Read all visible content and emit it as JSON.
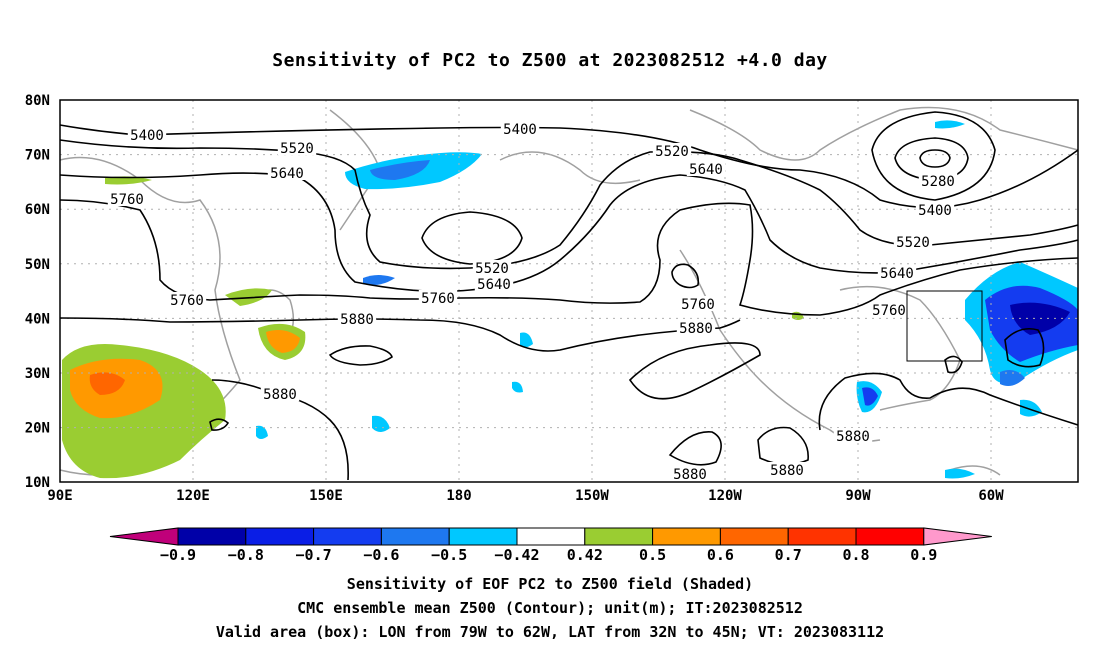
{
  "title": "Sensitivity of PC2 to Z500 at 2023082512 +4.0 day",
  "map": {
    "lat_labels": [
      "80N",
      "70N",
      "60N",
      "50N",
      "40N",
      "30N",
      "20N",
      "10N"
    ],
    "lon_labels": [
      "90E",
      "120E",
      "150E",
      "180",
      "150W",
      "120W",
      "90W",
      "60W"
    ],
    "valid_box": {
      "lon_from": "79W",
      "lon_to": "62W",
      "lat_from": "32N",
      "lat_to": "45N"
    }
  },
  "contours": [
    {
      "value": "5400",
      "label": "5400"
    },
    {
      "value": "5280",
      "label": "5280"
    },
    {
      "value": "5520",
      "label": "5520"
    },
    {
      "value": "5640",
      "label": "5640"
    },
    {
      "value": "5760",
      "label": "5760"
    },
    {
      "value": "5880",
      "label": "5880"
    }
  ],
  "colorbar": {
    "labels": [
      "-0.9",
      "-0.8",
      "-0.7",
      "-0.6",
      "-0.5",
      "-0.42",
      "0.42",
      "0.5",
      "0.6",
      "0.7",
      "0.8",
      "0.9"
    ],
    "colors": [
      "#0000a8",
      "#0a1ee6",
      "#143cf0",
      "#1e78f0",
      "#00c8ff",
      "#ffffff",
      "#9acd32",
      "#ff9900",
      "#ff6600",
      "#ff3300",
      "#ff0000"
    ],
    "under_color": "#c0007a",
    "over_color": "#ff99cc"
  },
  "captions": {
    "line1": "Sensitivity of EOF PC2 to Z500 field (Shaded)",
    "line2": "CMC ensemble mean Z500 (Contour); unit(m); IT:2023082512",
    "line3": "Valid area (box): LON from 79W to 62W, LAT from 32N to 45N; VT: 2023083112"
  }
}
